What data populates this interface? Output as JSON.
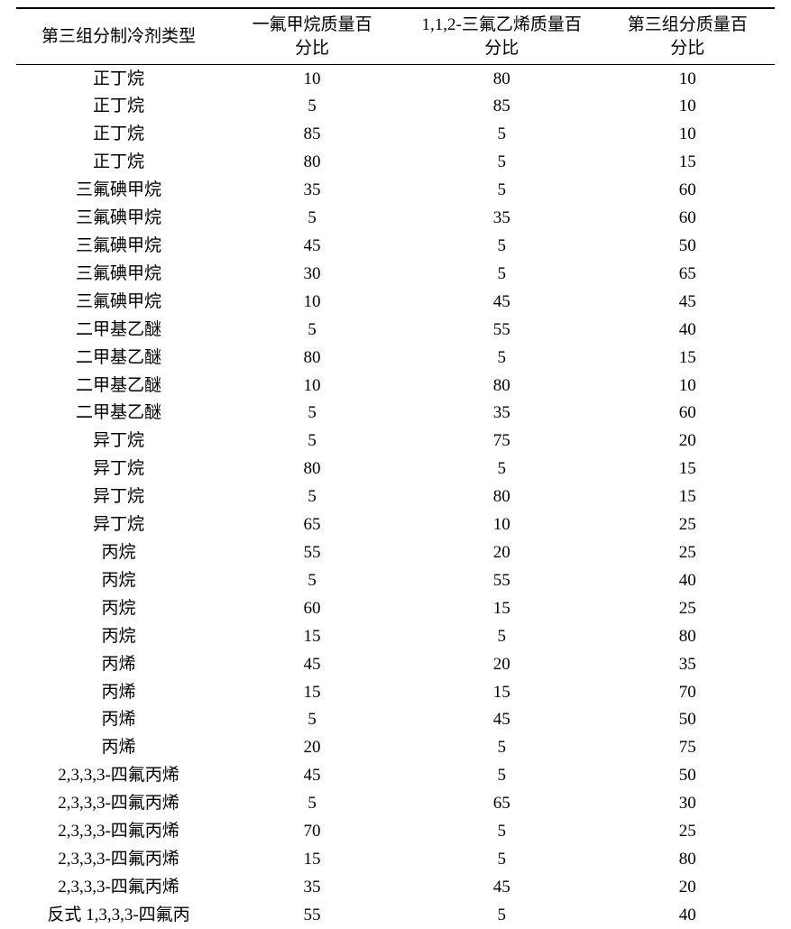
{
  "table": {
    "columns": [
      "第三组分制冷剂类型",
      "一氟甲烷质量百分比",
      "1,1,2-三氟乙烯质量百分比",
      "第三组分质量百分比"
    ],
    "column_widths": [
      "27%",
      "24%",
      "26%",
      "23%"
    ],
    "header_fontsize": 19,
    "cell_fontsize": 19,
    "border_color": "#000000",
    "background_color": "#ffffff",
    "text_color": "#000000",
    "rows": [
      [
        "正丁烷",
        "10",
        "80",
        "10"
      ],
      [
        "正丁烷",
        "5",
        "85",
        "10"
      ],
      [
        "正丁烷",
        "85",
        "5",
        "10"
      ],
      [
        "正丁烷",
        "80",
        "5",
        "15"
      ],
      [
        "三氟碘甲烷",
        "35",
        "5",
        "60"
      ],
      [
        "三氟碘甲烷",
        "5",
        "35",
        "60"
      ],
      [
        "三氟碘甲烷",
        "45",
        "5",
        "50"
      ],
      [
        "三氟碘甲烷",
        "30",
        "5",
        "65"
      ],
      [
        "三氟碘甲烷",
        "10",
        "45",
        "45"
      ],
      [
        "二甲基乙醚",
        "5",
        "55",
        "40"
      ],
      [
        "二甲基乙醚",
        "80",
        "5",
        "15"
      ],
      [
        "二甲基乙醚",
        "10",
        "80",
        "10"
      ],
      [
        "二甲基乙醚",
        "5",
        "35",
        "60"
      ],
      [
        "异丁烷",
        "5",
        "75",
        "20"
      ],
      [
        "异丁烷",
        "80",
        "5",
        "15"
      ],
      [
        "异丁烷",
        "5",
        "80",
        "15"
      ],
      [
        "异丁烷",
        "65",
        "10",
        "25"
      ],
      [
        "丙烷",
        "55",
        "20",
        "25"
      ],
      [
        "丙烷",
        "5",
        "55",
        "40"
      ],
      [
        "丙烷",
        "60",
        "15",
        "25"
      ],
      [
        "丙烷",
        "15",
        "5",
        "80"
      ],
      [
        "丙烯",
        "45",
        "20",
        "35"
      ],
      [
        "丙烯",
        "15",
        "15",
        "70"
      ],
      [
        "丙烯",
        "5",
        "45",
        "50"
      ],
      [
        "丙烯",
        "20",
        "5",
        "75"
      ],
      [
        "2,3,3,3-四氟丙烯",
        "45",
        "5",
        "50"
      ],
      [
        "2,3,3,3-四氟丙烯",
        "5",
        "65",
        "30"
      ],
      [
        "2,3,3,3-四氟丙烯",
        "70",
        "5",
        "25"
      ],
      [
        "2,3,3,3-四氟丙烯",
        "15",
        "5",
        "80"
      ],
      [
        "2,3,3,3-四氟丙烯",
        "35",
        "45",
        "20"
      ],
      [
        "反式 1,3,3,3-四氟丙",
        "55",
        "5",
        "40"
      ]
    ]
  }
}
